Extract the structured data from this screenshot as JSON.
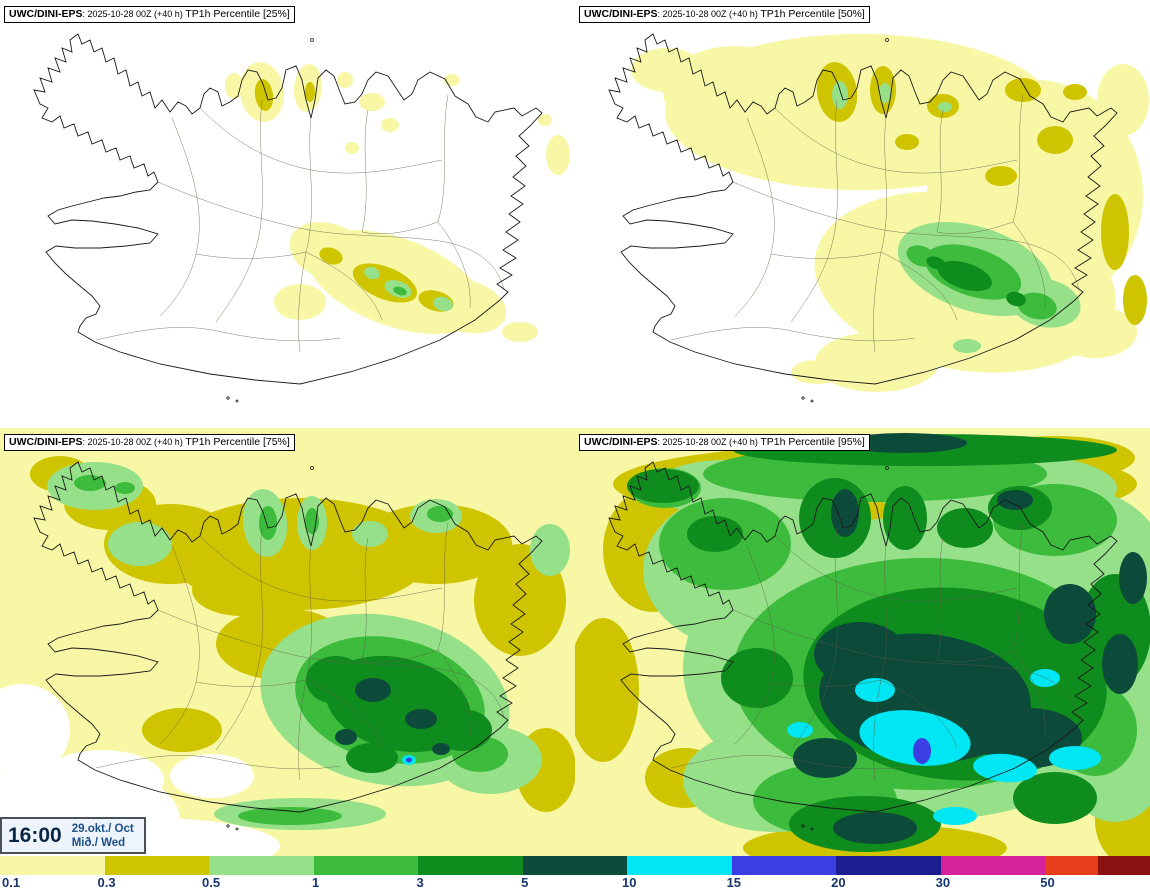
{
  "panels": [
    {
      "model": "UWC/DINI-EPS",
      "run": ": 2025-10-28 00Z (+40 h) ",
      "product": "TP1h Percentile [25%]"
    },
    {
      "model": "UWC/DINI-EPS",
      "run": ": 2025-10-28 00Z (+40 h) ",
      "product": "TP1h Percentile [50%]"
    },
    {
      "model": "UWC/DINI-EPS",
      "run": ": 2025-10-28 00Z (+40 h) ",
      "product": "TP1h Percentile [75%]"
    },
    {
      "model": "UWC/DINI-EPS",
      "run": ": 2025-10-28 00Z (+40 h) ",
      "product": "TP1h Percentile [95%]"
    }
  ],
  "timebox": {
    "time": "16:00",
    "date": "29.okt./ Oct",
    "day": "Mið./ Wed"
  },
  "colorbar": {
    "labels": [
      "0.1",
      "0.3",
      "0.5",
      "1",
      "3",
      "5",
      "10",
      "15",
      "20",
      "30",
      "50"
    ],
    "colors": [
      "#f7f7a6",
      "#cfc400",
      "#97e08a",
      "#3cbb3c",
      "#0f8c1e",
      "#0c4a3a",
      "#00e6f2",
      "#3b3ee3",
      "#1c1e8f",
      "#d6219c",
      "#e83d1a",
      "#8c1212"
    ],
    "label_color": "#16366e"
  }
}
